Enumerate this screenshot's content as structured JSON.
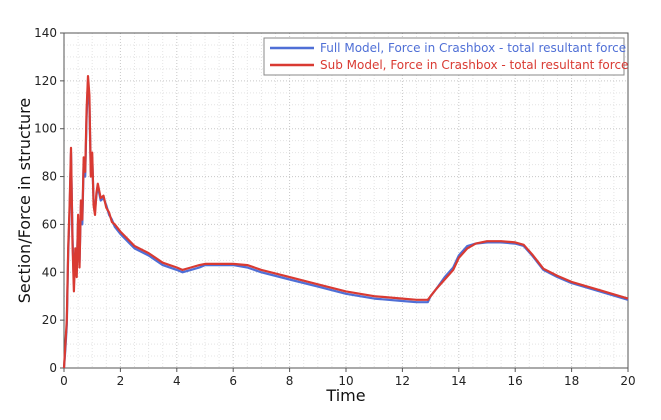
{
  "chart_data": {
    "type": "line",
    "title": "",
    "xlabel": "Time",
    "ylabel": "Section/Force in structure",
    "xlim": [
      0,
      20
    ],
    "ylim": [
      0,
      140
    ],
    "x_ticks": [
      "0",
      "2",
      "4",
      "6",
      "8",
      "10",
      "12",
      "14",
      "16",
      "18",
      "20"
    ],
    "y_ticks": [
      "0",
      "20",
      "40",
      "60",
      "80",
      "100",
      "120",
      "140"
    ],
    "grid": "dotted minor and major",
    "legend_position": "top-right",
    "series": [
      {
        "name": "Full Model, Force in Crashbox -  total resultant force",
        "color": "#4f6fd6",
        "x": [
          0,
          0.05,
          0.1,
          0.15,
          0.2,
          0.25,
          0.3,
          0.35,
          0.4,
          0.45,
          0.5,
          0.55,
          0.6,
          0.65,
          0.7,
          0.75,
          0.8,
          0.85,
          0.9,
          0.95,
          1.0,
          1.05,
          1.1,
          1.15,
          1.2,
          1.3,
          1.4,
          1.5,
          1.6,
          1.7,
          1.8,
          2.0,
          2.5,
          3.0,
          3.5,
          4.0,
          4.2,
          4.5,
          4.8,
          5.0,
          5.5,
          6.0,
          6.5,
          7.0,
          8.0,
          9.0,
          10.0,
          11.0,
          12.0,
          12.5,
          12.9,
          13.0,
          13.2,
          13.5,
          13.8,
          14.0,
          14.3,
          14.6,
          15.0,
          15.5,
          16.0,
          16.3,
          16.6,
          17.0,
          17.5,
          18.0,
          19.0,
          20.0
        ],
        "values": [
          0,
          8,
          18,
          48,
          65,
          90,
          55,
          35,
          48,
          40,
          62,
          44,
          68,
          60,
          86,
          80,
          105,
          120,
          110,
          82,
          88,
          70,
          66,
          72,
          76,
          70,
          71,
          68,
          64,
          62,
          59,
          56,
          50,
          47,
          43,
          41,
          40,
          41,
          42,
          43,
          43,
          43,
          42,
          40,
          37,
          34,
          31,
          29,
          28,
          27.5,
          27.5,
          30,
          33,
          38,
          42,
          47,
          51,
          52,
          52.5,
          52.5,
          52,
          51,
          47,
          41,
          38,
          35.5,
          32,
          28.5
        ]
      },
      {
        "name": "Sub Model, Force in Crashbox - total resultant force",
        "color": "#d93a32",
        "x": [
          0,
          0.05,
          0.1,
          0.15,
          0.2,
          0.25,
          0.3,
          0.35,
          0.4,
          0.45,
          0.5,
          0.55,
          0.6,
          0.65,
          0.7,
          0.75,
          0.8,
          0.85,
          0.9,
          0.95,
          1.0,
          1.05,
          1.1,
          1.15,
          1.2,
          1.3,
          1.4,
          1.5,
          1.6,
          1.7,
          1.8,
          2.0,
          2.5,
          3.0,
          3.5,
          4.0,
          4.2,
          4.5,
          4.8,
          5.0,
          5.5,
          6.0,
          6.5,
          7.0,
          8.0,
          9.0,
          10.0,
          11.0,
          12.0,
          12.5,
          12.9,
          13.0,
          13.2,
          13.5,
          13.8,
          14.0,
          14.3,
          14.6,
          15.0,
          15.5,
          16.0,
          16.3,
          16.6,
          17.0,
          17.5,
          18.0,
          19.0,
          20.0
        ],
        "values": [
          0,
          10,
          20,
          50,
          68,
          92,
          52,
          32,
          50,
          38,
          64,
          42,
          70,
          62,
          88,
          82,
          108,
          122,
          114,
          80,
          90,
          68,
          64,
          73,
          77,
          71,
          72,
          67,
          65,
          61,
          60,
          57,
          51,
          48,
          44,
          42,
          41,
          42,
          43,
          43.5,
          43.5,
          43.5,
          43,
          41,
          38,
          35,
          32,
          30,
          29,
          28.5,
          28.5,
          30,
          33,
          37,
          41,
          46,
          50,
          52,
          53,
          53,
          52.5,
          51.5,
          47.5,
          41.5,
          38.5,
          36,
          32.5,
          29
        ]
      }
    ]
  }
}
